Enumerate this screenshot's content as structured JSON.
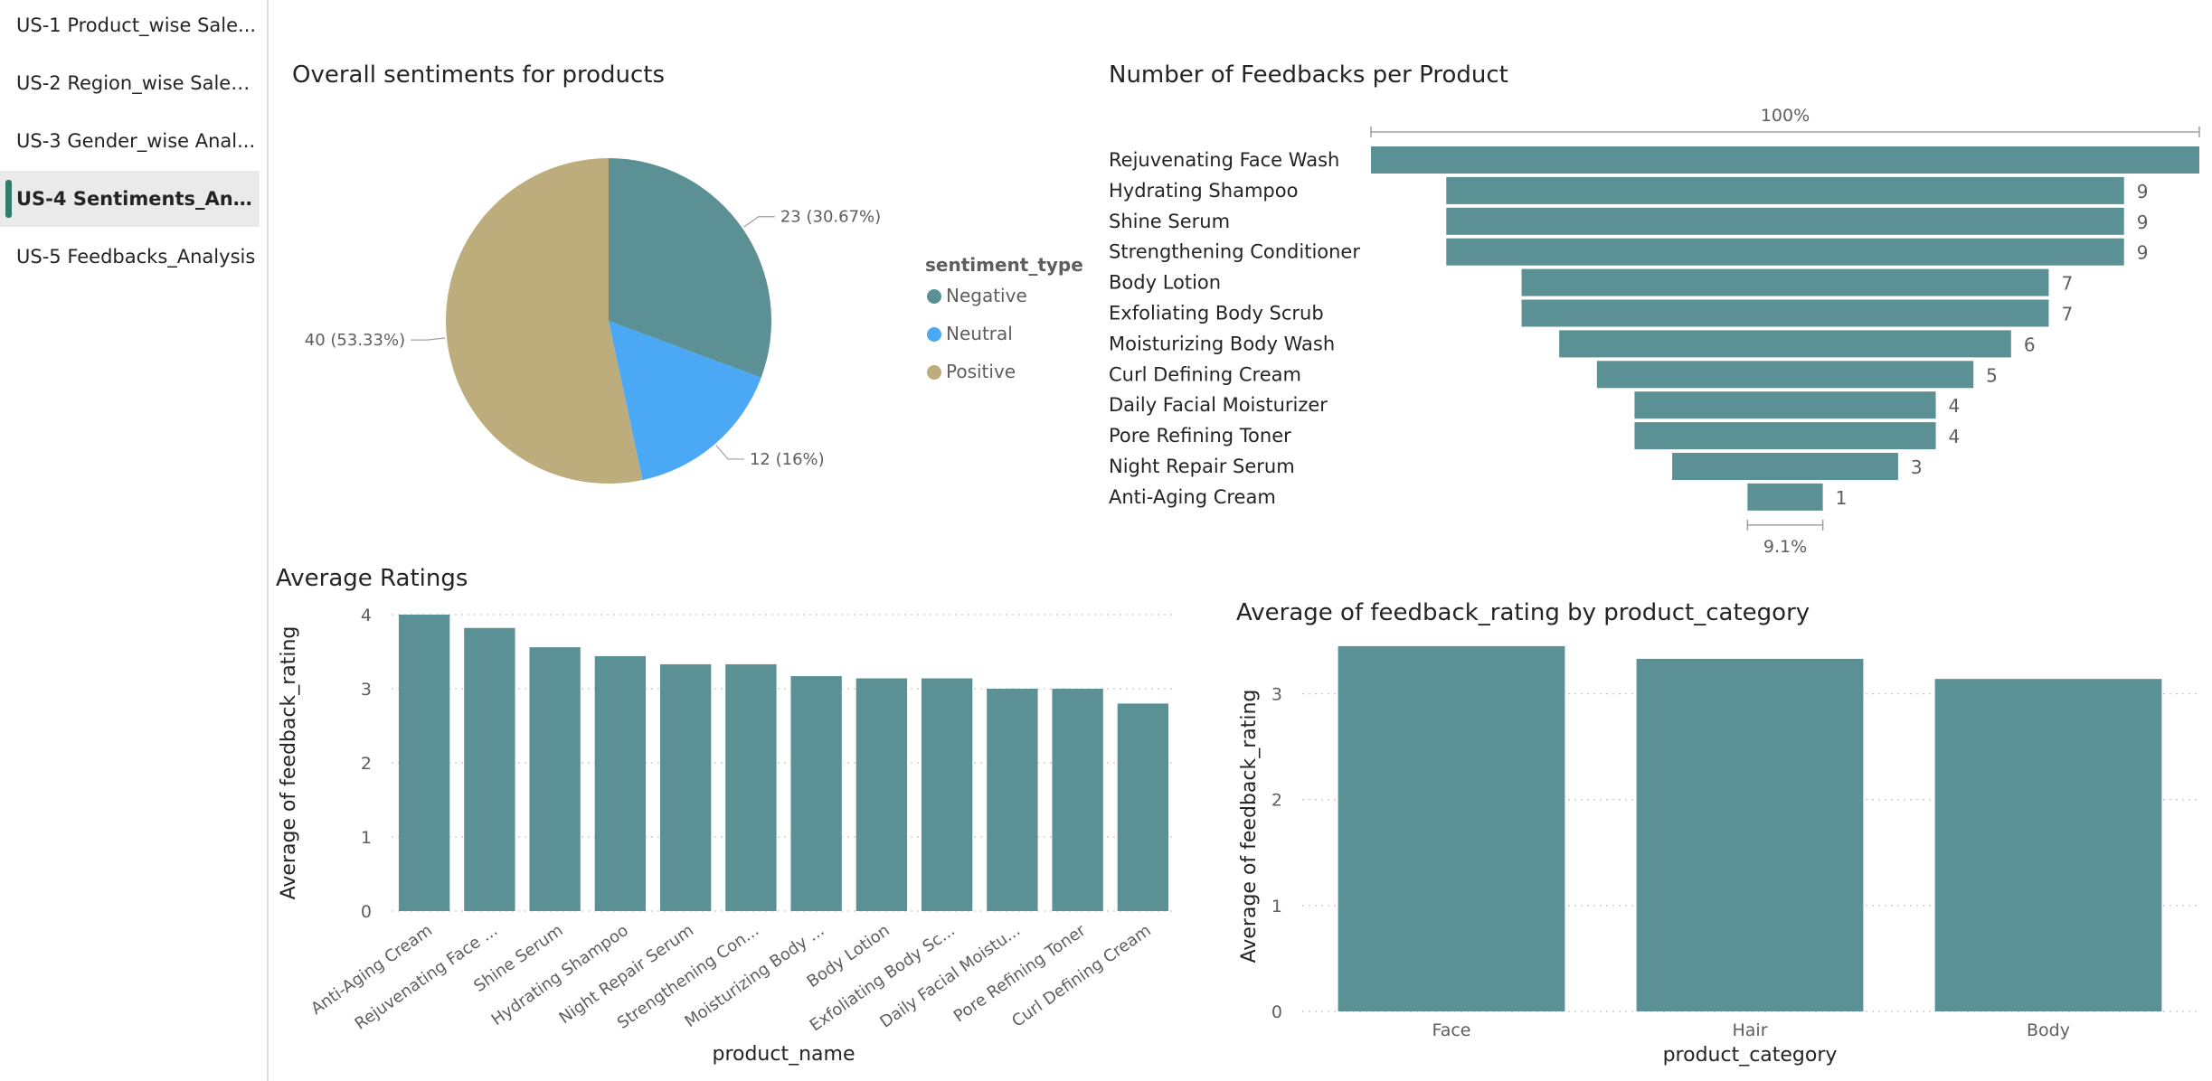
{
  "nav": {
    "items": [
      {
        "label": "US-1 Product_wise Sale...",
        "active": false
      },
      {
        "label": "US-2 Region_wise Sales ...",
        "active": false
      },
      {
        "label": "US-3 Gender_wise Anal...",
        "active": false
      },
      {
        "label": "US-4 Sentiments_Analy...",
        "active": true
      },
      {
        "label": "US-5 Feedbacks_Analysis",
        "active": false
      }
    ]
  },
  "colors": {
    "teal": "#5b9194",
    "neutral": "#4aa8f4",
    "positive": "#bdad7c",
    "text": "#252423",
    "muted": "#605e5c"
  },
  "chart_data": [
    {
      "type": "pie",
      "title": "Overall sentiments for products",
      "legend_title": "sentiment_type",
      "legend_position": "right",
      "slices": [
        {
          "name": "Negative",
          "value": 23,
          "label": "23 (30.67%)",
          "color": "#5b9194"
        },
        {
          "name": "Neutral",
          "value": 12,
          "label": "12 (16%)",
          "color": "#4aa8f4"
        },
        {
          "name": "Positive",
          "value": 40,
          "label": "40 (53.33%)",
          "color": "#bdad7c"
        }
      ]
    },
    {
      "type": "bar",
      "subtype": "funnel",
      "title": "Number of Feedbacks per Product",
      "top_label": "100%",
      "bottom_label": "9.1%",
      "categories": [
        "Rejuvenating Face Wash",
        "Hydrating Shampoo",
        "Shine Serum",
        "Strengthening Conditioner",
        "Body Lotion",
        "Exfoliating Body Scrub",
        "Moisturizing Body Wash",
        "Curl Defining Cream",
        "Daily Facial Moisturizer",
        "Pore Refining Toner",
        "Night Repair Serum",
        "Anti-Aging Cream"
      ],
      "values": [
        11,
        9,
        9,
        9,
        7,
        7,
        6,
        5,
        4,
        4,
        3,
        1
      ],
      "value_labels": [
        "",
        "9",
        "9",
        "9",
        "7",
        "7",
        "6",
        "5",
        "4",
        "4",
        "3",
        "1"
      ]
    },
    {
      "type": "bar",
      "title": "Average Ratings",
      "xlabel": "product_name",
      "ylabel": "Average of feedback_rating",
      "ylim": [
        0,
        4
      ],
      "yticks": [
        0,
        1,
        2,
        3,
        4
      ],
      "grid": true,
      "categories": [
        "Anti-Aging Cream",
        "Rejuvenating Face ...",
        "Shine Serum",
        "Hydrating Shampoo",
        "Night Repair Serum",
        "Strengthening Con...",
        "Moisturizing Body ...",
        "Body Lotion",
        "Exfoliating Body Sc...",
        "Daily Facial Moistu...",
        "Pore Refining Toner",
        "Curl Defining Cream"
      ],
      "values": [
        4.0,
        3.82,
        3.56,
        3.44,
        3.33,
        3.33,
        3.17,
        3.14,
        3.14,
        3.0,
        3.0,
        2.8
      ]
    },
    {
      "type": "bar",
      "title": "Average of feedback_rating by product_category",
      "xlabel": "product_category",
      "ylabel": "Average of feedback_rating",
      "ylim": [
        0,
        3.5
      ],
      "yticks": [
        0,
        1,
        2,
        3
      ],
      "grid": true,
      "categories": [
        "Face",
        "Hair",
        "Body"
      ],
      "values": [
        3.45,
        3.33,
        3.14
      ]
    }
  ]
}
